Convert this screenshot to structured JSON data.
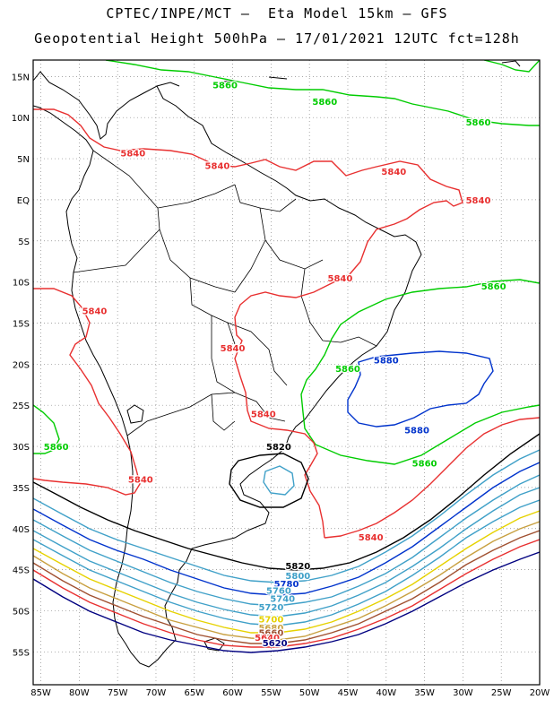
{
  "header": {
    "title_line1": "CPTEC/INPE/MCT –  Eta Model 15km – GFS",
    "title_line2": "Geopotential Height 500hPa – 17/01/2021 12UTC fct=128h"
  },
  "map": {
    "lon_range": [
      -86,
      -20
    ],
    "lat_range": [
      -59,
      17
    ],
    "grid": "dotted",
    "lon_labels": [
      "85W",
      "80W",
      "75W",
      "70W",
      "65W",
      "60W",
      "55W",
      "50W",
      "45W",
      "40W",
      "35W",
      "30W",
      "25W",
      "20W"
    ],
    "lat_labels": [
      "15N",
      "10N",
      "5N",
      "EQ",
      "5S",
      "10S",
      "15S",
      "20S",
      "25S",
      "30S",
      "35S",
      "40S",
      "45S",
      "50S",
      "55S"
    ],
    "contour_labels": [
      {
        "text": "5860",
        "color": "#00cc00",
        "lon": -61,
        "lat": 14
      },
      {
        "text": "5860",
        "color": "#00cc00",
        "lon": -48,
        "lat": 12
      },
      {
        "text": "5860",
        "color": "#00cc00",
        "lon": -28,
        "lat": 9.5
      },
      {
        "text": "5860",
        "color": "#00cc00",
        "lon": -26,
        "lat": -10.5
      },
      {
        "text": "5860",
        "color": "#00cc00",
        "lon": -45,
        "lat": -20.5
      },
      {
        "text": "5860",
        "color": "#00cc00",
        "lon": -83,
        "lat": -30
      },
      {
        "text": "5860",
        "color": "#00cc00",
        "lon": -35,
        "lat": -32
      },
      {
        "text": "5880",
        "color": "#0033cc",
        "lon": -40,
        "lat": -19.5
      },
      {
        "text": "5880",
        "color": "#0033cc",
        "lon": -36,
        "lat": -28
      },
      {
        "text": "5840",
        "color": "#e83030",
        "lon": -73,
        "lat": 5.7
      },
      {
        "text": "5840",
        "color": "#e83030",
        "lon": -62,
        "lat": 4.2
      },
      {
        "text": "5840",
        "color": "#e83030",
        "lon": -39,
        "lat": 3.5
      },
      {
        "text": "5840",
        "color": "#e83030",
        "lon": -28,
        "lat": 0
      },
      {
        "text": "5840",
        "color": "#e83030",
        "lon": -46,
        "lat": -9.5
      },
      {
        "text": "5840",
        "color": "#e83030",
        "lon": -78,
        "lat": -13.5
      },
      {
        "text": "5840",
        "color": "#e83030",
        "lon": -60,
        "lat": -18
      },
      {
        "text": "5840",
        "color": "#e83030",
        "lon": -56,
        "lat": -26
      },
      {
        "text": "5840",
        "color": "#e83030",
        "lon": -72,
        "lat": -34
      },
      {
        "text": "5840",
        "color": "#e83030",
        "lon": -42,
        "lat": -41
      },
      {
        "text": "5820",
        "color": "#000000",
        "lon": -54,
        "lat": -30
      },
      {
        "text": "5820",
        "color": "#000000",
        "lon": -51.5,
        "lat": -44.5
      },
      {
        "text": "5800",
        "color": "#3fa0c8",
        "lon": -51.5,
        "lat": -45.7
      },
      {
        "text": "5780",
        "color": "#0033cc",
        "lon": -53,
        "lat": -46.7
      },
      {
        "text": "5760",
        "color": "#3fa0c8",
        "lon": -54,
        "lat": -47.5
      },
      {
        "text": "5740",
        "color": "#3fa0c8",
        "lon": -53.5,
        "lat": -48.5
      },
      {
        "text": "5720",
        "color": "#3fa0c8",
        "lon": -55,
        "lat": -49.5
      },
      {
        "text": "5700",
        "color": "#e6d200",
        "lon": -55,
        "lat": -51
      },
      {
        "text": "5680",
        "color": "#c8a040",
        "lon": -55,
        "lat": -52
      },
      {
        "text": "5660",
        "color": "#a05030",
        "lon": -55,
        "lat": -52.6
      },
      {
        "text": "5640",
        "color": "#e83030",
        "lon": -55.5,
        "lat": -53.2
      },
      {
        "text": "5620",
        "color": "#000080",
        "lon": -54.5,
        "lat": -53.9
      }
    ]
  }
}
